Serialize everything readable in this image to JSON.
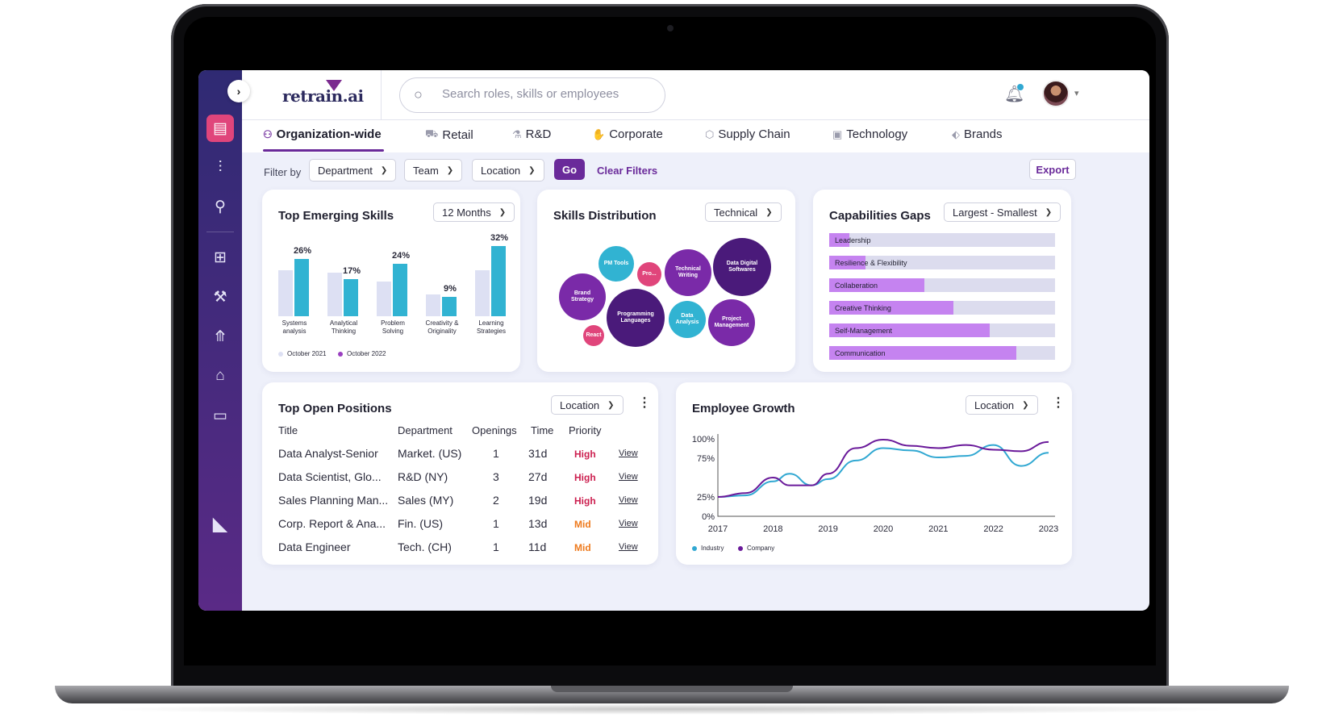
{
  "app": {
    "logo": "retrain.ai"
  },
  "search": {
    "placeholder": "Search roles, skills or employees"
  },
  "tabs": [
    {
      "label": "Organization-wide",
      "icon": "org-icon"
    },
    {
      "label": "Retail",
      "icon": "cart-icon"
    },
    {
      "label": "R&D",
      "icon": "flask-icon"
    },
    {
      "label": "Corporate",
      "icon": "handshake-icon"
    },
    {
      "label": "Supply Chain",
      "icon": "box-icon"
    },
    {
      "label": "Technology",
      "icon": "chip-icon"
    },
    {
      "label": "Brands",
      "icon": "tag-icon"
    }
  ],
  "filters": {
    "label": "Filter by",
    "department": "Department",
    "team": "Team",
    "location": "Location",
    "go": "Go",
    "clear": "Clear Filters",
    "export": "Export"
  },
  "emerging": {
    "title": "Top Emerging Skills",
    "period": "12 Months",
    "chart_data": {
      "type": "bar",
      "categories": [
        "Systems analysis",
        "Analytical Thinking",
        "Problem Solving",
        "Creativity & Originality",
        "Learning Strategies"
      ],
      "series": [
        {
          "name": "October 2021",
          "values": [
            21,
            20,
            16,
            10,
            21
          ],
          "color": "#dde0f3"
        },
        {
          "name": "October 2022",
          "values": [
            26,
            17,
            24,
            9,
            32
          ],
          "color": "#31b3d2"
        }
      ],
      "data_labels": [
        "26%",
        "17%",
        "24%",
        "9%",
        "32%"
      ],
      "ylim": [
        0,
        35
      ]
    }
  },
  "distribution": {
    "title": "Skills Distribution",
    "filter": "Technical",
    "bubbles": [
      {
        "label": "PM Tools",
        "color": "#31b3d2"
      },
      {
        "label": "Pro...",
        "color": "#e0457b"
      },
      {
        "label": "Technical Writing",
        "color": "#7a2aa8"
      },
      {
        "label": "Data Digital Softwares",
        "color": "#4a1a7a"
      },
      {
        "label": "Brand Strategy",
        "color": "#7a2aa8"
      },
      {
        "label": "Programming Languages",
        "color": "#4a1a7a"
      },
      {
        "label": "Data Analysis",
        "color": "#31b3d2"
      },
      {
        "label": "Project Management",
        "color": "#7a2aa8"
      },
      {
        "label": "React",
        "color": "#e0457b"
      }
    ]
  },
  "gaps": {
    "title": "Capabilities Gaps",
    "sort": "Largest - Smallest",
    "items": [
      {
        "label": "Leadership",
        "value": 0.09
      },
      {
        "label": "Resilience & Flexibility",
        "value": 0.16
      },
      {
        "label": "Collaberation",
        "value": 0.42
      },
      {
        "label": "Creative Thinking",
        "value": 0.55
      },
      {
        "label": "Self-Management",
        "value": 0.71
      },
      {
        "label": "Communication",
        "value": 0.83
      }
    ]
  },
  "positions": {
    "title": "Top Open Positions",
    "filter": "Location",
    "headers": [
      "Title",
      "Department",
      "Openings",
      "Time",
      "Priority"
    ],
    "rows": [
      {
        "title": "Data Analyst-Senior",
        "dept": "Market. (US)",
        "openings": "1",
        "time": "31d",
        "priority": "High",
        "pcolor": "#cc1f4f",
        "view": "View"
      },
      {
        "title": "Data Scientist, Glo...",
        "dept": "R&D (NY)",
        "openings": "3",
        "time": "27d",
        "priority": "High",
        "pcolor": "#cc1f4f",
        "view": "View"
      },
      {
        "title": "Sales Planning Man...",
        "dept": "Sales (MY)",
        "openings": "2",
        "time": "19d",
        "priority": "High",
        "pcolor": "#cc1f4f",
        "view": "View"
      },
      {
        "title": "Corp. Report & Ana...",
        "dept": "Fin. (US)",
        "openings": "1",
        "time": "13d",
        "priority": "Mid",
        "pcolor": "#ee7a1d",
        "view": "View"
      },
      {
        "title": "Data Engineer",
        "dept": "Tech. (CH)",
        "openings": "1",
        "time": "11d",
        "priority": "Mid",
        "pcolor": "#ee7a1d",
        "view": "View"
      }
    ]
  },
  "growth": {
    "title": "Employee Growth",
    "filter": "Location",
    "chart_data": {
      "type": "line",
      "x": [
        2017,
        2017.5,
        2018,
        2018.3,
        2018.7,
        2019,
        2019.5,
        2020,
        2020.5,
        2021,
        2021.5,
        2022,
        2022.5,
        2023
      ],
      "xticks": [
        "2017",
        "2018",
        "2019",
        "2020",
        "2021",
        "2022",
        "2023"
      ],
      "yticks": [
        "100%",
        "75%",
        "25%",
        "0%"
      ],
      "ylim": [
        0,
        100
      ],
      "series": [
        {
          "name": "Industry",
          "color": "#31a8d2",
          "values": [
            25,
            27,
            45,
            55,
            40,
            48,
            72,
            88,
            85,
            76,
            78,
            92,
            65,
            82
          ]
        },
        {
          "name": "Company",
          "color": "#6a1a9a",
          "values": [
            25,
            30,
            50,
            40,
            40,
            55,
            88,
            99,
            91,
            88,
            92,
            86,
            84,
            96
          ]
        }
      ]
    }
  }
}
